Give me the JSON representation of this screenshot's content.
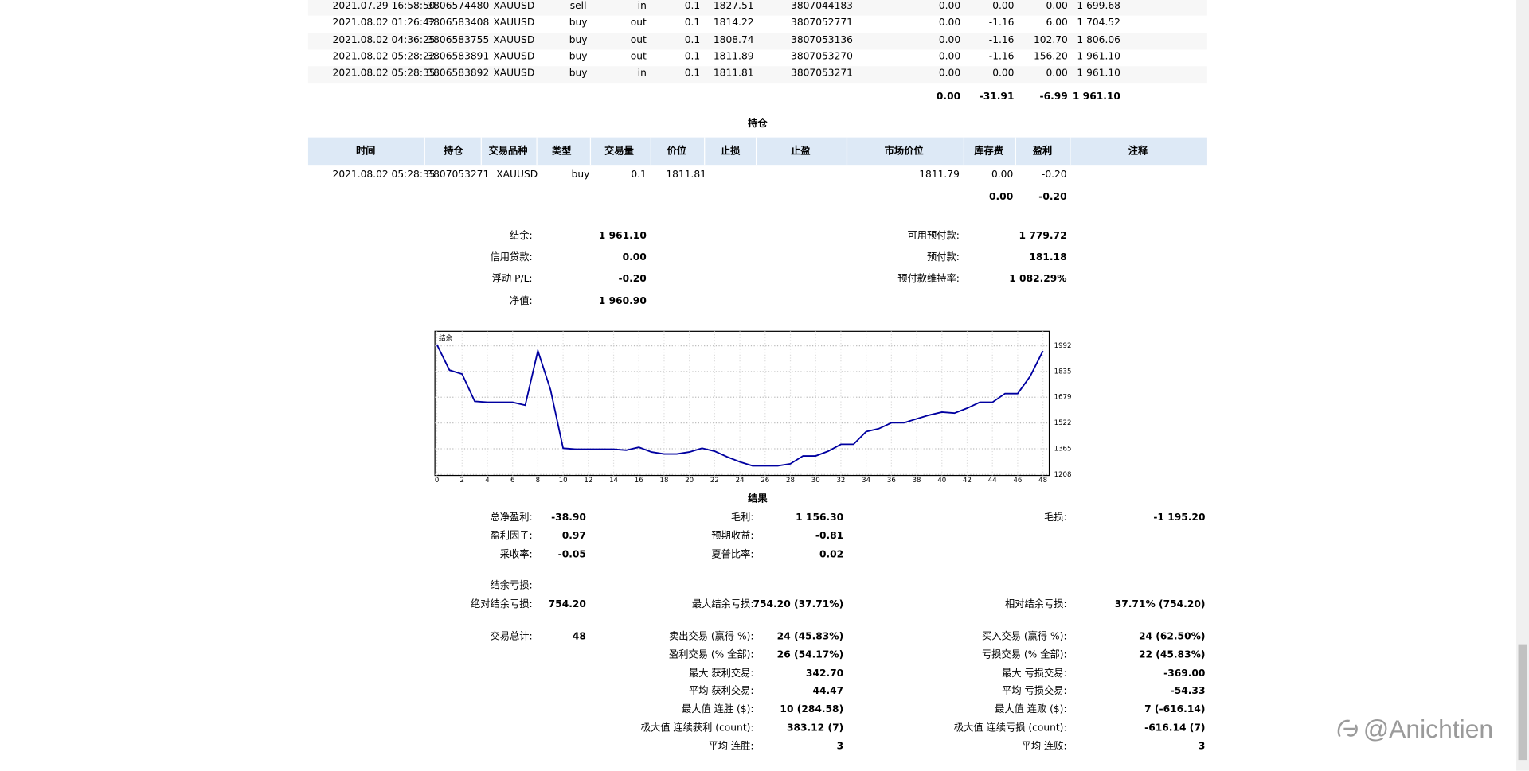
{
  "deals": {
    "rows": [
      [
        "2021.07.29 16:58:50",
        "3806574480",
        "XAUUSD",
        "sell",
        "in",
        "0.1",
        "1827.51",
        "3807044183",
        "0.00",
        "0.00",
        "0.00",
        "1 699.68"
      ],
      [
        "2021.08.02 01:26:42",
        "3806583408",
        "XAUUSD",
        "buy",
        "out",
        "0.1",
        "1814.22",
        "3807052771",
        "0.00",
        "-1.16",
        "6.00",
        "1 704.52"
      ],
      [
        "2021.08.02 04:36:25",
        "3806583755",
        "XAUUSD",
        "buy",
        "out",
        "0.1",
        "1808.74",
        "3807053136",
        "0.00",
        "-1.16",
        "102.70",
        "1 806.06"
      ],
      [
        "2021.08.02 05:28:22",
        "3806583891",
        "XAUUSD",
        "buy",
        "out",
        "0.1",
        "1811.89",
        "3807053270",
        "0.00",
        "-1.16",
        "156.20",
        "1 961.10"
      ],
      [
        "2021.08.02 05:28:35",
        "3806583892",
        "XAUUSD",
        "buy",
        "in",
        "0.1",
        "1811.81",
        "3807053271",
        "0.00",
        "0.00",
        "0.00",
        "1 961.10"
      ]
    ],
    "totals": [
      "0.00",
      "-31.91",
      "-6.99",
      "1 961.10"
    ]
  },
  "positions": {
    "title": "持仓",
    "headers": [
      "时间",
      "持仓",
      "交易品种",
      "类型",
      "交易量",
      "价位",
      "止损",
      "止盈",
      "市场价位",
      "库存费",
      "盈利",
      "注释"
    ],
    "rows": [
      {
        "time": "2021.08.02 05:28:35",
        "ticket": "3807053271",
        "symbol": "XAUUSD",
        "type": "buy",
        "volume": "0.1",
        "price": "1811.81",
        "market_price": "1811.79",
        "swap": "0.00",
        "profit": "-0.20"
      }
    ],
    "totals": {
      "swap": "0.00",
      "profit": "-0.20"
    }
  },
  "summary": {
    "left": [
      {
        "label": "结余:",
        "value": "1 961.10"
      },
      {
        "label": "信用贷款:",
        "value": "0.00"
      },
      {
        "label": "浮动 P/L:",
        "value": "-0.20"
      },
      {
        "label": "净值:",
        "value": "1 960.90"
      }
    ],
    "right": [
      {
        "label": "可用预付款:",
        "value": "1 779.72"
      },
      {
        "label": "预付款:",
        "value": "181.18"
      },
      {
        "label": "预付款维持率:",
        "value": "1 082.29%"
      }
    ]
  },
  "chart": {
    "type": "line",
    "label": "结余",
    "color": "#0000a0",
    "grid": true,
    "x": [
      0,
      1,
      2,
      3,
      4,
      5,
      6,
      7,
      8,
      9,
      10,
      11,
      12,
      13,
      14,
      15,
      16,
      17,
      18,
      19,
      20,
      21,
      22,
      23,
      24,
      25,
      26,
      27,
      28,
      29,
      30,
      31,
      32,
      33,
      34,
      35,
      36,
      37,
      38,
      39,
      40,
      41,
      42,
      43,
      44,
      45,
      46,
      47,
      48
    ],
    "values": [
      2000,
      1844,
      1820,
      1654,
      1648,
      1648,
      1648,
      1630,
      1962,
      1725,
      1368,
      1362,
      1362,
      1362,
      1362,
      1356,
      1374,
      1345,
      1333,
      1333,
      1345,
      1368,
      1350,
      1315,
      1285,
      1261,
      1261,
      1261,
      1273,
      1321,
      1321,
      1350,
      1392,
      1392,
      1469,
      1487,
      1523,
      1523,
      1547,
      1570,
      1588,
      1582,
      1612,
      1648,
      1648,
      1701,
      1701,
      1808,
      1961
    ],
    "xlim": [
      0,
      48.5
    ],
    "ylim": [
      1208,
      2075
    ],
    "xticks": [
      0,
      2,
      4,
      6,
      8,
      10,
      12,
      14,
      16,
      18,
      20,
      22,
      24,
      26,
      28,
      30,
      32,
      34,
      36,
      38,
      40,
      42,
      44,
      46,
      48
    ],
    "yticks": [
      1208,
      1365,
      1522,
      1679,
      1835,
      1992
    ]
  },
  "results": {
    "title": "结果",
    "rows": [
      [
        {
          "label": "总净盈利:",
          "value": "-38.90"
        },
        {
          "label": "毛利:",
          "value": "1 156.30"
        },
        {
          "label": "毛损:",
          "value": "-1 195.20"
        }
      ],
      [
        {
          "label": "盈利因子:",
          "value": "0.97"
        },
        {
          "label": "预期收益:",
          "value": "-0.81"
        },
        null
      ],
      [
        {
          "label": "采收率:",
          "value": "-0.05"
        },
        {
          "label": "夏普比率:",
          "value": "0.02"
        },
        null
      ],
      [
        {
          "label": "结余亏损:"
        },
        null,
        null
      ],
      [
        {
          "label": "绝对结余亏损:",
          "value": "754.20"
        },
        {
          "label": "最大结余亏损:",
          "value": "754.20 (37.71%)"
        },
        {
          "label": "相对结余亏损:",
          "value": "37.71% (754.20)"
        }
      ],
      [
        {
          "label": "交易总计:",
          "value": "48"
        },
        {
          "label": "卖出交易 (赢得 %):",
          "value": "24 (45.83%)"
        },
        {
          "label": "买入交易 (赢得 %):",
          "value": "24 (62.50%)"
        }
      ],
      [
        null,
        {
          "label": "盈利交易 (% 全部):",
          "value": "26 (54.17%)"
        },
        {
          "label": "亏损交易 (% 全部):",
          "value": "22 (45.83%)"
        }
      ],
      [
        null,
        {
          "label": "最大 获利交易:",
          "value": "342.70"
        },
        {
          "label": "最大 亏损交易:",
          "value": "-369.00"
        }
      ],
      [
        null,
        {
          "label": "平均 获利交易:",
          "value": "44.47"
        },
        {
          "label": "平均 亏损交易:",
          "value": "-54.33"
        }
      ],
      [
        null,
        {
          "label": "最大值 连胜 ($):",
          "value": "10 (284.58)"
        },
        {
          "label": "最大值 连败 ($):",
          "value": "7 (-616.14)"
        }
      ],
      [
        null,
        {
          "label": "极大值 连续获利 (count):",
          "value": "383.12 (7)"
        },
        {
          "label": "极大值 连续亏损 (count):",
          "value": "-616.14 (7)"
        }
      ],
      [
        null,
        {
          "label": "平均 连胜:",
          "value": "3"
        },
        {
          "label": "平均 连败:",
          "value": "3"
        }
      ]
    ]
  },
  "watermark": "@Anichtien"
}
